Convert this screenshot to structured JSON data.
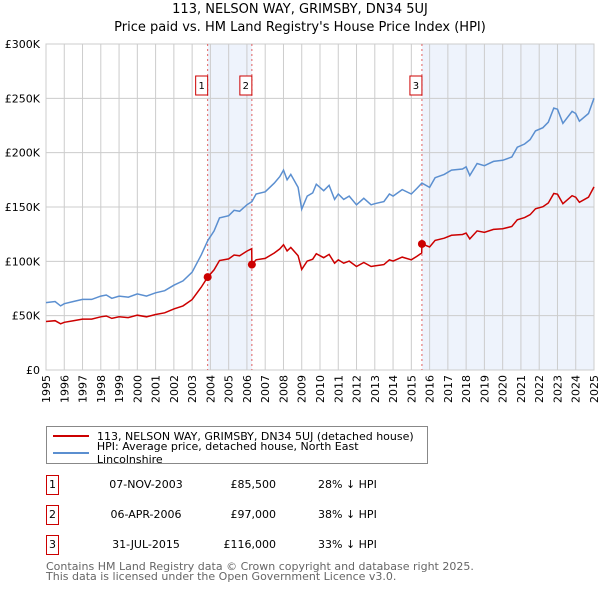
{
  "chart_data": {
    "type": "line",
    "title": "113, NELSON WAY, GRIMSBY, DN34 5UJ",
    "subtitle": "Price paid vs. HM Land Registry's House Price Index (HPI)",
    "xlim": [
      1995,
      2025
    ],
    "ylim": [
      0,
      300000
    ],
    "y_ticks": [
      0,
      50000,
      100000,
      150000,
      200000,
      250000,
      300000
    ],
    "y_tick_labels": [
      "£0",
      "£50K",
      "£100K",
      "£150K",
      "£200K",
      "£250K",
      "£300K"
    ],
    "x_ticks": [
      1995,
      1996,
      1997,
      1998,
      1999,
      2000,
      2001,
      2002,
      2003,
      2004,
      2005,
      2006,
      2007,
      2008,
      2009,
      2010,
      2011,
      2012,
      2013,
      2014,
      2015,
      2016,
      2017,
      2018,
      2019,
      2020,
      2021,
      2022,
      2023,
      2024,
      2025
    ],
    "x_tick_labels": [
      "1995",
      "1996",
      "1997",
      "1998",
      "1999",
      "2000",
      "2001",
      "2002",
      "2003",
      "2004",
      "2005",
      "2006",
      "2007",
      "2008",
      "2009",
      "2010",
      "2011",
      "2012",
      "2013",
      "2014",
      "2015",
      "2016",
      "2017",
      "2018",
      "2019",
      "2020",
      "2021",
      "2022",
      "2023",
      "2024",
      "2025"
    ],
    "grid": true,
    "shaded_ranges": [
      [
        2003.85,
        2006.27
      ],
      [
        2015.58,
        2025
      ]
    ],
    "colors": {
      "price": "#cc0000",
      "hpi": "#5b8fd0",
      "shade": "#eef3fc",
      "grid": "#cccccc"
    },
    "series": [
      {
        "name": "113, NELSON WAY, GRIMSBY, DN34 5UJ (detached house)",
        "color": "#cc0000",
        "points": [
          [
            1995.0,
            44.6
          ],
          [
            1995.5,
            45.4
          ],
          [
            1995.8,
            42.5
          ],
          [
            1996.0,
            43.9
          ],
          [
            1996.5,
            45.4
          ],
          [
            1997.0,
            46.8
          ],
          [
            1997.5,
            46.8
          ],
          [
            1998.0,
            49
          ],
          [
            1998.3,
            49.7
          ],
          [
            1998.6,
            47.5
          ],
          [
            1999.0,
            49
          ],
          [
            1999.5,
            48.2
          ],
          [
            2000.0,
            50.4
          ],
          [
            2000.5,
            49
          ],
          [
            2001.0,
            51.1
          ],
          [
            2001.5,
            52.6
          ],
          [
            2002.0,
            56.2
          ],
          [
            2002.5,
            59
          ],
          [
            2003.0,
            64.8
          ],
          [
            2003.5,
            76.3
          ],
          [
            2003.85,
            85.5
          ],
          [
            2004.2,
            92.2
          ],
          [
            2004.5,
            100.8
          ],
          [
            2005.0,
            102.2
          ],
          [
            2005.3,
            105.8
          ],
          [
            2005.6,
            105.1
          ],
          [
            2006.0,
            109.4
          ],
          [
            2006.26,
            111.6
          ],
          [
            2006.27,
            97
          ],
          [
            2006.5,
            101.4
          ],
          [
            2007.0,
            102.7
          ],
          [
            2007.5,
            107.7
          ],
          [
            2007.8,
            111.4
          ],
          [
            2008.0,
            115.2
          ],
          [
            2008.2,
            109.6
          ],
          [
            2008.4,
            112.7
          ],
          [
            2008.8,
            105.2
          ],
          [
            2009.0,
            92.6
          ],
          [
            2009.3,
            100.2
          ],
          [
            2009.6,
            102
          ],
          [
            2009.8,
            107
          ],
          [
            2010.2,
            103.3
          ],
          [
            2010.5,
            106.4
          ],
          [
            2010.8,
            98.3
          ],
          [
            2011.0,
            101.4
          ],
          [
            2011.3,
            98.3
          ],
          [
            2011.6,
            100.2
          ],
          [
            2012.0,
            95.2
          ],
          [
            2012.4,
            98.9
          ],
          [
            2012.8,
            95.2
          ],
          [
            2013.0,
            95.8
          ],
          [
            2013.5,
            97
          ],
          [
            2013.8,
            101.4
          ],
          [
            2014.0,
            100.2
          ],
          [
            2014.5,
            103.9
          ],
          [
            2015.0,
            101.4
          ],
          [
            2015.3,
            104.5
          ],
          [
            2015.57,
            107.7
          ],
          [
            2015.58,
            116
          ],
          [
            2016.0,
            113.2
          ],
          [
            2016.3,
            119.3
          ],
          [
            2016.8,
            121.3
          ],
          [
            2017.2,
            124
          ],
          [
            2017.8,
            124.7
          ],
          [
            2018.0,
            126
          ],
          [
            2018.2,
            120.6
          ],
          [
            2018.6,
            128
          ],
          [
            2019.0,
            126.7
          ],
          [
            2019.5,
            129.4
          ],
          [
            2020.0,
            130
          ],
          [
            2020.5,
            132.1
          ],
          [
            2020.8,
            138.2
          ],
          [
            2021.2,
            140.2
          ],
          [
            2021.5,
            142.9
          ],
          [
            2021.8,
            148.3
          ],
          [
            2022.2,
            150.3
          ],
          [
            2022.5,
            153.7
          ],
          [
            2022.8,
            162.4
          ],
          [
            2023.0,
            161.8
          ],
          [
            2023.3,
            153
          ],
          [
            2023.8,
            160.4
          ],
          [
            2024.0,
            159
          ],
          [
            2024.2,
            154.3
          ],
          [
            2024.7,
            159
          ],
          [
            2025.0,
            168.5
          ]
        ]
      },
      {
        "name": "HPI: Average price, detached house, North East Lincolnshire",
        "color": "#5b8fd0",
        "points": [
          [
            1995.0,
            62
          ],
          [
            1995.5,
            63
          ],
          [
            1995.8,
            59
          ],
          [
            1996.0,
            61
          ],
          [
            1996.5,
            63
          ],
          [
            1997.0,
            65
          ],
          [
            1997.5,
            65
          ],
          [
            1998.0,
            68
          ],
          [
            1998.3,
            69
          ],
          [
            1998.6,
            66
          ],
          [
            1999.0,
            68
          ],
          [
            1999.5,
            67
          ],
          [
            2000.0,
            70
          ],
          [
            2000.5,
            68
          ],
          [
            2001.0,
            71
          ],
          [
            2001.5,
            73
          ],
          [
            2002.0,
            78
          ],
          [
            2002.5,
            82
          ],
          [
            2003.0,
            90
          ],
          [
            2003.5,
            106
          ],
          [
            2003.85,
            119
          ],
          [
            2004.2,
            128
          ],
          [
            2004.5,
            140
          ],
          [
            2005.0,
            142
          ],
          [
            2005.3,
            147
          ],
          [
            2005.6,
            146
          ],
          [
            2006.0,
            152
          ],
          [
            2006.27,
            155
          ],
          [
            2006.5,
            162
          ],
          [
            2007.0,
            164
          ],
          [
            2007.5,
            172
          ],
          [
            2007.8,
            178
          ],
          [
            2008.0,
            184
          ],
          [
            2008.2,
            175
          ],
          [
            2008.4,
            180
          ],
          [
            2008.8,
            168
          ],
          [
            2009.0,
            148
          ],
          [
            2009.3,
            160
          ],
          [
            2009.6,
            163
          ],
          [
            2009.8,
            171
          ],
          [
            2010.2,
            165
          ],
          [
            2010.5,
            170
          ],
          [
            2010.8,
            157
          ],
          [
            2011.0,
            162
          ],
          [
            2011.3,
            157
          ],
          [
            2011.6,
            160
          ],
          [
            2012.0,
            152
          ],
          [
            2012.4,
            158
          ],
          [
            2012.8,
            152
          ],
          [
            2013.0,
            153
          ],
          [
            2013.5,
            155
          ],
          [
            2013.8,
            162
          ],
          [
            2014.0,
            160
          ],
          [
            2014.5,
            166
          ],
          [
            2015.0,
            162
          ],
          [
            2015.3,
            167
          ],
          [
            2015.58,
            172
          ],
          [
            2016.0,
            168
          ],
          [
            2016.3,
            177
          ],
          [
            2016.8,
            180
          ],
          [
            2017.2,
            184
          ],
          [
            2017.8,
            185
          ],
          [
            2018.0,
            187
          ],
          [
            2018.2,
            179
          ],
          [
            2018.6,
            190
          ],
          [
            2019.0,
            188
          ],
          [
            2019.5,
            192
          ],
          [
            2020.0,
            193
          ],
          [
            2020.5,
            196
          ],
          [
            2020.8,
            205
          ],
          [
            2021.2,
            208
          ],
          [
            2021.5,
            212
          ],
          [
            2021.8,
            220
          ],
          [
            2022.2,
            223
          ],
          [
            2022.5,
            228
          ],
          [
            2022.8,
            241
          ],
          [
            2023.0,
            240
          ],
          [
            2023.3,
            227
          ],
          [
            2023.8,
            238
          ],
          [
            2024.0,
            236
          ],
          [
            2024.2,
            229
          ],
          [
            2024.7,
            236
          ],
          [
            2025.0,
            250
          ]
        ]
      }
    ],
    "y_unit_multiplier": 1000,
    "sales": [
      {
        "label": "1",
        "x": 2003.85,
        "price": 85500
      },
      {
        "label": "2",
        "x": 2006.27,
        "price": 97000
      },
      {
        "label": "3",
        "x": 2015.58,
        "price": 116000
      }
    ]
  },
  "legend": {
    "price_label": "113, NELSON WAY, GRIMSBY, DN34 5UJ (detached house)",
    "hpi_label": "HPI: Average price, detached house, North East Lincolnshire"
  },
  "transactions": [
    {
      "num": "1",
      "date": "07-NOV-2003",
      "price": "£85,500",
      "hpi": "28% ↓ HPI"
    },
    {
      "num": "2",
      "date": "06-APR-2006",
      "price": "£97,000",
      "hpi": "38% ↓ HPI"
    },
    {
      "num": "3",
      "date": "31-JUL-2015",
      "price": "£116,000",
      "hpi": "33% ↓ HPI"
    }
  ],
  "footer": {
    "line1": "Contains HM Land Registry data © Crown copyright and database right 2025.",
    "line2": "This data is licensed under the Open Government Licence v3.0."
  }
}
